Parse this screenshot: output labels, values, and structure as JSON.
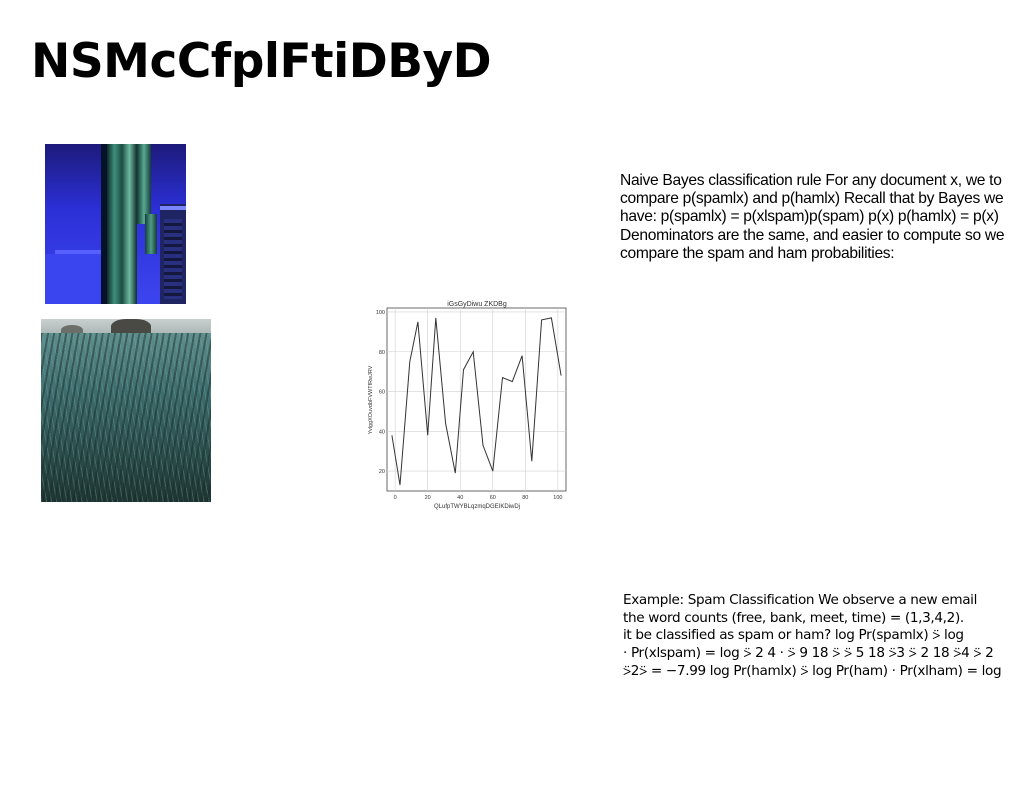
{
  "slide": {
    "title": "NSMcCfplFtiDByD",
    "paragraph1": "Naive Bayes classification rule For any document x, we to compare p(spamlx) and p(hamlx) Recall that by Bayes we have: p(spamlx) = p(xlspam)p(spam) p(x) p(hamlx) = p(x) Denominators are the same, and easier to compute so we compare the spam and ham probabilities:",
    "paragraph2_lines": [
      "Example: Spam Classification We observe a new email",
      "the word counts (free, bank, meet, time) = (1,3,4,2).",
      "it be classified as spam or ham? log Pr(spamlx) ⍩ log",
      "· Pr(xlspam) = log ⍩ 2 4 · ⍩ 9 18 ⍩ ⍩ 5 18 ⍩3 ⍩ 2 18 ⍩4 ⍩ 2",
      "⍩2⍩ = −7.99 log Pr(hamlx) ⍩ log Pr(ham) · Pr(xlham) = log"
    ]
  },
  "images": [
    {
      "description_name": "cactus-photo"
    },
    {
      "description_name": "dune-grass-photo"
    }
  ],
  "chart_data": {
    "type": "line",
    "title": "iGsGyDiwu ZKDBg",
    "xlabel": "QLufpTWYBLqzmqDGEIKDiwDj",
    "ylabel": "YvlggXOuvdbFVWTfRwJRV",
    "x": [
      -2,
      3,
      9,
      14,
      20,
      25,
      31,
      37,
      42,
      48,
      54,
      60,
      66,
      72,
      78,
      84,
      90,
      96,
      102
    ],
    "y": [
      38,
      13,
      75,
      95,
      38,
      97,
      44,
      19,
      71,
      80,
      33,
      20,
      67,
      65,
      78,
      25,
      96,
      97,
      68
    ],
    "y_last": 68,
    "xticks": [
      0,
      20,
      40,
      60,
      80,
      100
    ],
    "yticks": [
      20,
      40,
      60,
      80,
      100
    ],
    "xlim": [
      -5,
      105
    ],
    "ylim": [
      10,
      102
    ],
    "grid": true,
    "line_color": "#333333"
  }
}
